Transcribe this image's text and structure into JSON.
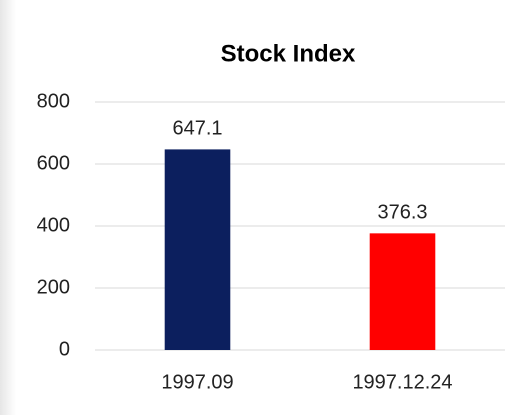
{
  "chart_data": {
    "type": "bar",
    "title": "Stock Index",
    "categories": [
      "1997.09",
      "1997.12.24"
    ],
    "values": [
      647.1,
      376.3
    ],
    "colors": [
      "#0c1f5e",
      "#ff0000"
    ],
    "ylim": [
      0,
      800
    ],
    "yticks": [
      0,
      200,
      400,
      600,
      800
    ],
    "grid": true
  }
}
